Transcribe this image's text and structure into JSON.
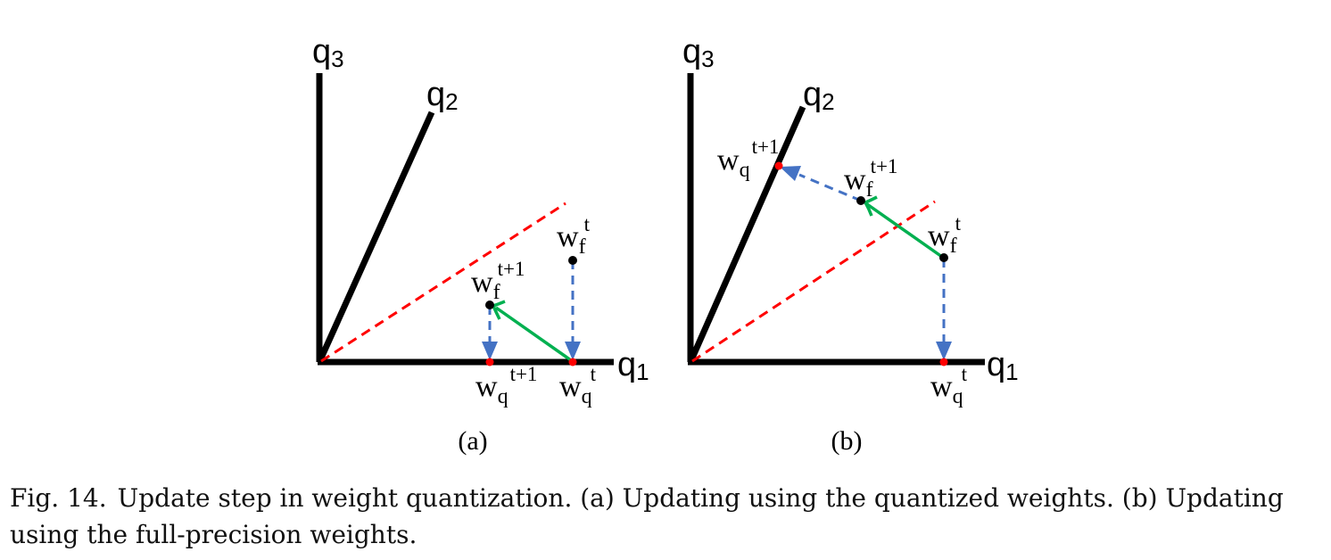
{
  "panels": [
    {
      "label": "(a)",
      "axes": {
        "x": [
          "q",
          "1"
        ],
        "y": [
          "q",
          "3"
        ],
        "diag": [
          "q",
          "2"
        ]
      },
      "points": {
        "wf_t": {
          "base": "w",
          "sub": "f",
          "sup": "t"
        },
        "wf_t1": {
          "base": "w",
          "sub": "f",
          "sup": "t+1"
        },
        "wq_t": {
          "base": "w",
          "sub": "q",
          "sup": "t"
        },
        "wq_t1": {
          "base": "w",
          "sub": "q",
          "sup": "t+1"
        }
      }
    },
    {
      "label": "(b)",
      "axes": {
        "x": [
          "q",
          "1"
        ],
        "y": [
          "q",
          "3"
        ],
        "diag": [
          "q",
          "2"
        ]
      },
      "points": {
        "wf_t": {
          "base": "w",
          "sub": "f",
          "sup": "t"
        },
        "wf_t1": {
          "base": "w",
          "sub": "f",
          "sup": "t+1"
        },
        "wq_t": {
          "base": "w",
          "sub": "q",
          "sup": "t"
        },
        "wq_t1": {
          "base": "w",
          "sub": "q",
          "sup": "t+1"
        }
      }
    }
  ],
  "caption": {
    "figure_number": "Fig. 14.",
    "text": "Update step in weight quantization. (a) Updating using the quantized weights. (b) Updating using the full-precision weights."
  },
  "colors": {
    "axes": "#000000",
    "decision_boundary": "#ff0000",
    "projection_arrow": "#4472c4",
    "update_arrow": "#00b050",
    "quantized_point": "#ff0000",
    "full_precision_point": "#000000"
  }
}
